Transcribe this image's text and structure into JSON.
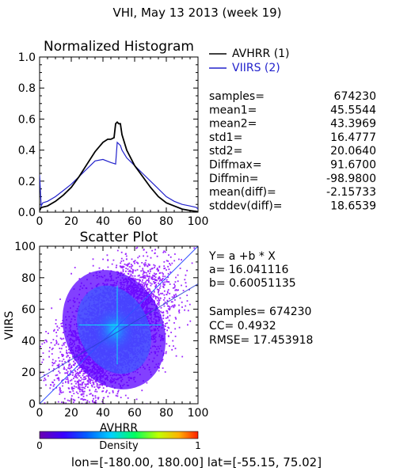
{
  "header": {
    "title": "VHI,  May 13 2013 (week 19)"
  },
  "colors": {
    "avhrr": "#000000",
    "viirs": "#2222cc",
    "scatter_core": "#3a5cff",
    "scatter_mid": "#5a00ff",
    "scatter_edge": "#8a00ff",
    "crosshair": "#00ffee"
  },
  "histogram": {
    "title": "Normalized Histogram",
    "legend": [
      {
        "label": "AVHRR (1)",
        "color": "#000000"
      },
      {
        "label": "VIIRS (2)",
        "color": "#2222cc"
      }
    ],
    "x_ticks": [
      "0",
      "20",
      "40",
      "60",
      "80",
      "100"
    ],
    "y_ticks": [
      "0.0",
      "0.2",
      "0.4",
      "0.6",
      "0.8",
      "1.0"
    ]
  },
  "stats": [
    {
      "label": "samples=",
      "value": "674230"
    },
    {
      "label": "mean1=",
      "value": "45.5544"
    },
    {
      "label": "mean2=",
      "value": "43.3969"
    },
    {
      "label": "std1=",
      "value": "16.4777"
    },
    {
      "label": "std2=",
      "value": "20.0640"
    },
    {
      "label": "Diffmax=",
      "value": "91.6700"
    },
    {
      "label": "Diffmin=",
      "value": "-98.9800"
    },
    {
      "label": "mean(diff)=",
      "value": "-2.15733"
    },
    {
      "label": "stddev(diff)=",
      "value": "18.6539"
    }
  ],
  "scatter": {
    "title": "Scatter Plot",
    "xlabel": "AVHRR",
    "ylabel": "VIIRS",
    "x_ticks": [
      "0",
      "20",
      "40",
      "60",
      "80",
      "100"
    ],
    "y_ticks": [
      "0",
      "20",
      "40",
      "60",
      "80",
      "100"
    ],
    "regression": [
      "Y= a +b * X",
      "a= 16.041116",
      "b= 0.60051135"
    ],
    "metrics": [
      "Samples= 674230",
      "CC=  0.4932",
      "RMSE= 17.453918"
    ]
  },
  "colorbar": {
    "label": "Density",
    "min_label": "0",
    "max_label": "1"
  },
  "footer": {
    "region": "lon=[-180.00, 180.00] lat=[-55.15, 75.02]"
  },
  "chart_data": [
    {
      "type": "line",
      "title": "Normalized Histogram",
      "xlim": [
        0,
        100
      ],
      "ylim": [
        0,
        1
      ],
      "series": [
        {
          "name": "AVHRR (1)",
          "color": "#000000",
          "x": [
            0,
            1,
            5,
            10,
            15,
            20,
            25,
            30,
            35,
            40,
            43,
            45,
            47,
            48,
            49,
            50,
            51,
            52,
            55,
            60,
            65,
            70,
            75,
            80,
            85,
            90,
            95,
            99,
            100
          ],
          "y": [
            0.01,
            0.03,
            0.04,
            0.07,
            0.11,
            0.16,
            0.23,
            0.31,
            0.39,
            0.45,
            0.47,
            0.47,
            0.48,
            0.57,
            0.58,
            0.57,
            0.57,
            0.5,
            0.4,
            0.3,
            0.23,
            0.16,
            0.1,
            0.06,
            0.04,
            0.02,
            0.01,
            0.005,
            0.0
          ]
        },
        {
          "name": "VIIRS (2)",
          "color": "#2222cc",
          "x": [
            0,
            1,
            2,
            5,
            10,
            15,
            20,
            25,
            30,
            35,
            40,
            45,
            48,
            49,
            50,
            51,
            52,
            55,
            60,
            65,
            70,
            75,
            80,
            85,
            90,
            95,
            99,
            100
          ],
          "y": [
            0.24,
            0.04,
            0.06,
            0.07,
            0.1,
            0.14,
            0.18,
            0.23,
            0.28,
            0.33,
            0.34,
            0.32,
            0.31,
            0.45,
            0.44,
            0.43,
            0.4,
            0.35,
            0.3,
            0.25,
            0.2,
            0.15,
            0.1,
            0.07,
            0.05,
            0.04,
            0.03,
            0.02
          ]
        }
      ]
    },
    {
      "type": "scatter",
      "title": "Scatter Plot",
      "xlabel": "AVHRR",
      "ylabel": "VIIRS",
      "xlim": [
        0,
        100
      ],
      "ylim": [
        0,
        100
      ],
      "samples": 674230,
      "regression": {
        "a": 16.041116,
        "b": 0.60051135
      },
      "cc": 0.4932,
      "rmse": 17.453918,
      "density_center": [
        47,
        47
      ],
      "density_spread": [
        16.5,
        20
      ]
    }
  ]
}
